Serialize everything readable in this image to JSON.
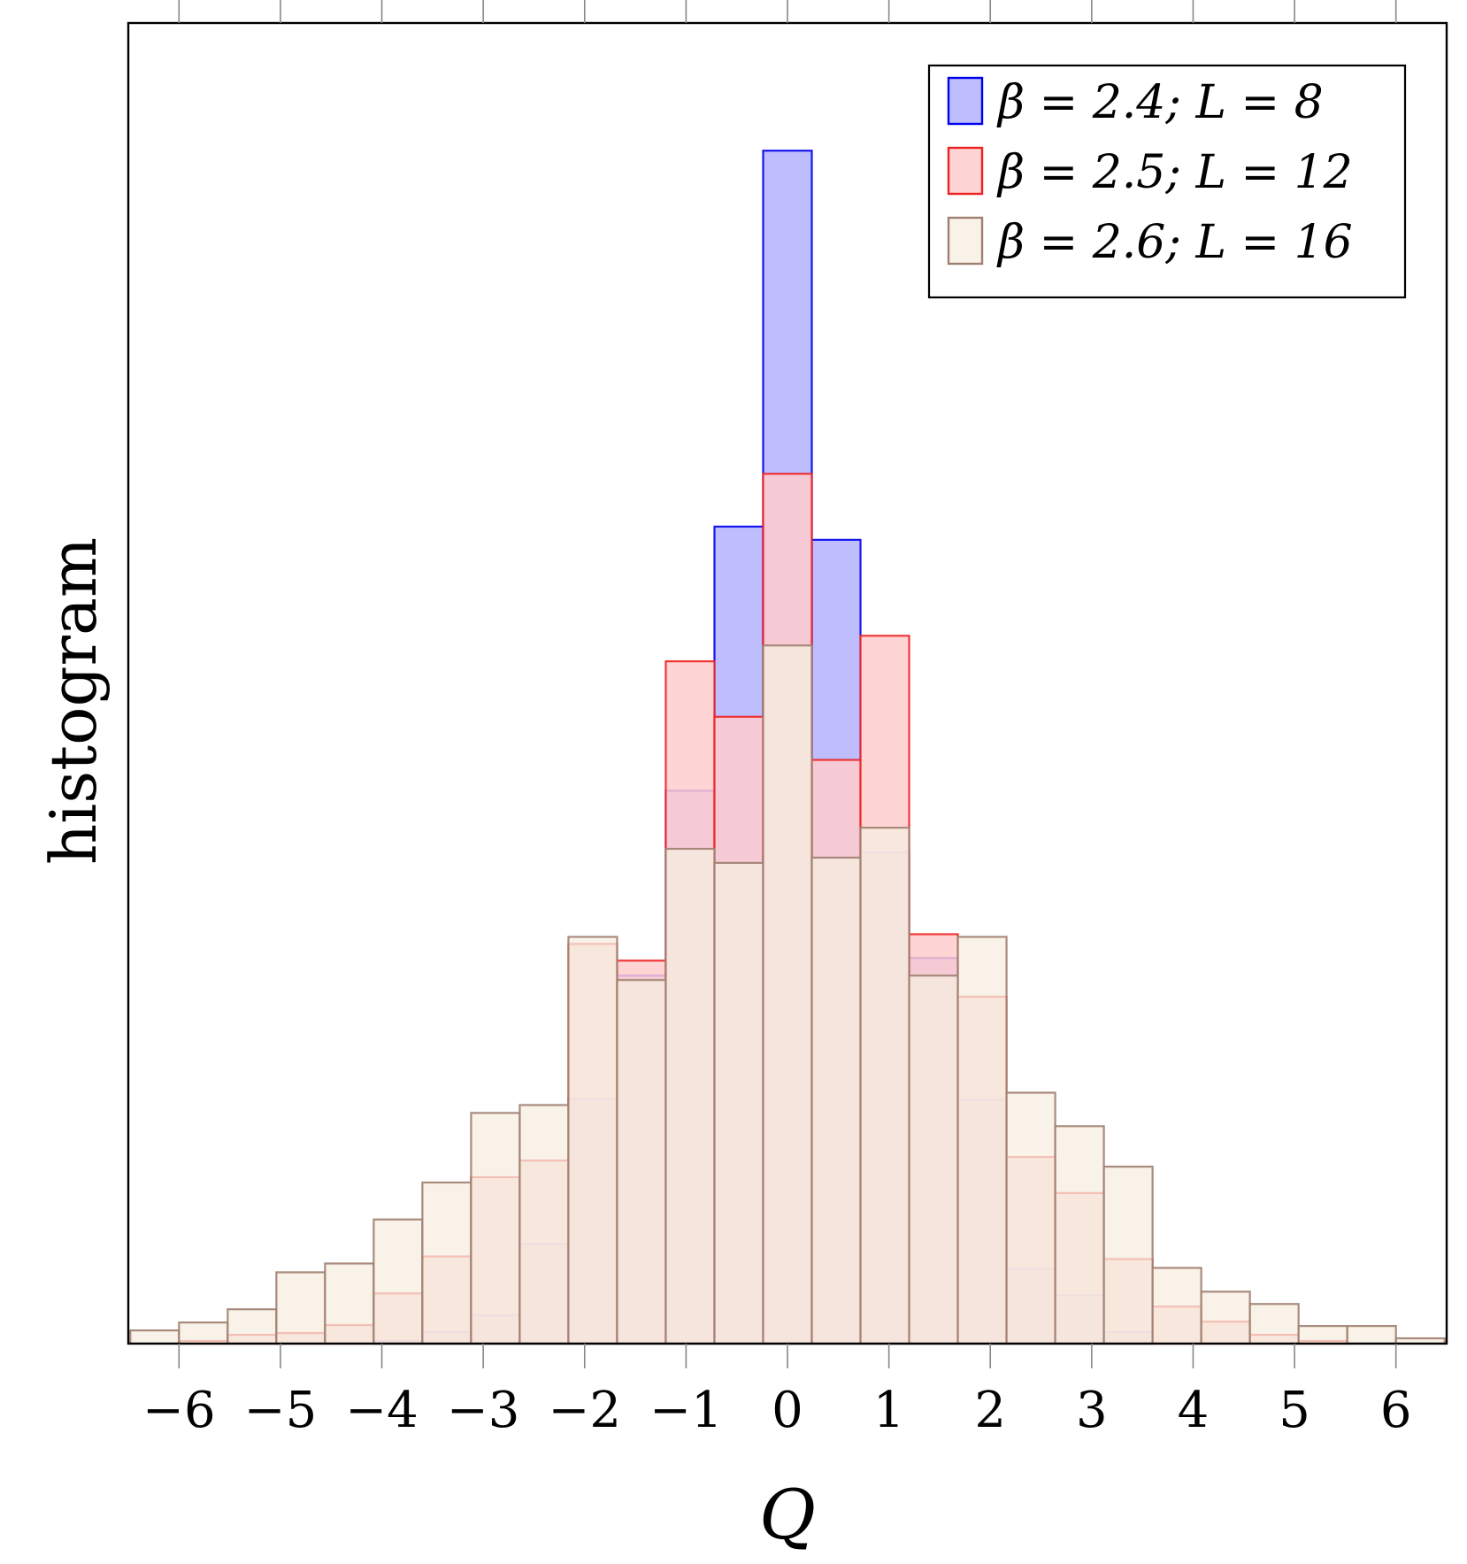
{
  "chart_data": {
    "type": "bar",
    "title": "",
    "xlabel": "Q",
    "ylabel": "histogram",
    "xlim": [
      -6.5,
      6.5
    ],
    "ylim": [
      0,
      150
    ],
    "x_ticks": [
      "−6",
      "−5",
      "−4",
      "−3",
      "−2",
      "−1",
      "0",
      "1",
      "2",
      "3",
      "4",
      "5",
      "6"
    ],
    "x_tick_values": [
      -6,
      -5,
      -4,
      -3,
      -2,
      -1,
      0,
      1,
      2,
      3,
      4,
      5,
      6
    ],
    "bin_width": 0.48,
    "bin_centers": [
      -6.24,
      -5.76,
      -5.28,
      -4.8,
      -4.32,
      -3.84,
      -3.36,
      -2.88,
      -2.4,
      -1.92,
      -1.44,
      -0.96,
      -0.48,
      0.0,
      0.48,
      0.96,
      1.44,
      1.92,
      2.4,
      2.88,
      3.36,
      3.84,
      4.32,
      4.8,
      5.28,
      5.76,
      6.24
    ],
    "legend_position": "top-right",
    "grid": false,
    "series": [
      {
        "name": "β = 2.4; L = 8",
        "fill": "#b3b3ff",
        "stroke": "#0000ee",
        "values": [
          0,
          0,
          0,
          0,
          0,
          0.3,
          1.3,
          3.2,
          11.3,
          27.8,
          41.8,
          62.8,
          92.8,
          135.5,
          91.3,
          55.8,
          43.8,
          27.7,
          8.5,
          5.5,
          1.3,
          0,
          0,
          0,
          0,
          0,
          0
        ]
      },
      {
        "name": "β = 2.5; L = 12",
        "fill": "#ffcccc",
        "stroke": "#ee2222",
        "values": [
          0,
          0.3,
          1,
          1.2,
          2.1,
          5.7,
          9.9,
          18.9,
          20.8,
          45.4,
          43.5,
          77.5,
          71.2,
          98.8,
          66.3,
          80.4,
          46.5,
          39.4,
          21.2,
          17.1,
          9.6,
          4.2,
          2.5,
          1,
          0.3,
          0,
          0
        ]
      },
      {
        "name": "β = 2.6; L = 16",
        "fill": "#f5ede0",
        "stroke": "#a08070",
        "values": [
          1.5,
          2.4,
          3.9,
          8.1,
          9.1,
          14.1,
          18.3,
          26.2,
          27.1,
          46.2,
          41.3,
          56.2,
          54.6,
          79.3,
          55.2,
          58.6,
          41.8,
          46.2,
          28.5,
          24.7,
          20.1,
          8.6,
          5.9,
          4.5,
          2,
          2,
          0.6
        ]
      }
    ]
  }
}
